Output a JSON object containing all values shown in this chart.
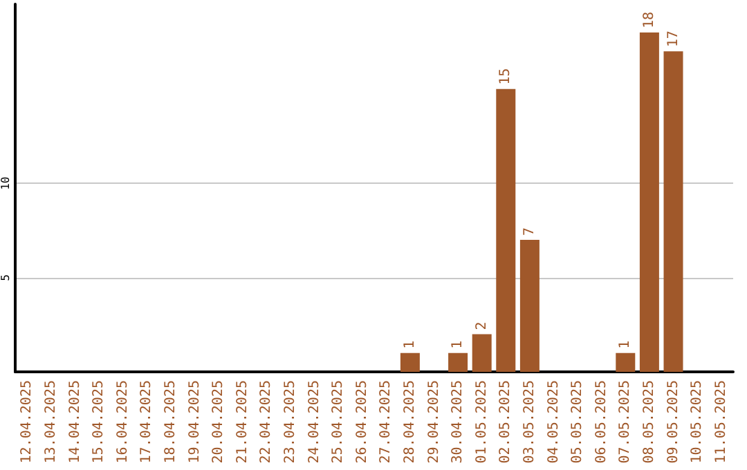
{
  "chart_data": {
    "type": "bar",
    "categories": [
      "12.04.2025",
      "13.04.2025",
      "14.04.2025",
      "15.04.2025",
      "16.04.2025",
      "17.04.2025",
      "18.04.2025",
      "19.04.2025",
      "20.04.2025",
      "21.04.2025",
      "22.04.2025",
      "23.04.2025",
      "24.04.2025",
      "25.04.2025",
      "26.04.2025",
      "27.04.2025",
      "28.04.2025",
      "29.04.2025",
      "30.04.2025",
      "01.05.2025",
      "02.05.2025",
      "03.05.2025",
      "04.05.2025",
      "05.05.2025",
      "06.05.2025",
      "07.05.2025",
      "08.05.2025",
      "09.05.2025",
      "10.05.2025",
      "11.05.2025"
    ],
    "values": [
      null,
      null,
      null,
      null,
      null,
      null,
      null,
      null,
      null,
      null,
      null,
      null,
      null,
      null,
      null,
      null,
      1,
      null,
      1,
      2,
      15,
      7,
      null,
      null,
      null,
      1,
      18,
      17,
      null,
      null
    ],
    "color": "#a0582a",
    "ylim": [
      0,
      19.5
    ],
    "yticks": [
      5,
      10
    ],
    "grid": "y",
    "data_labels": true
  }
}
